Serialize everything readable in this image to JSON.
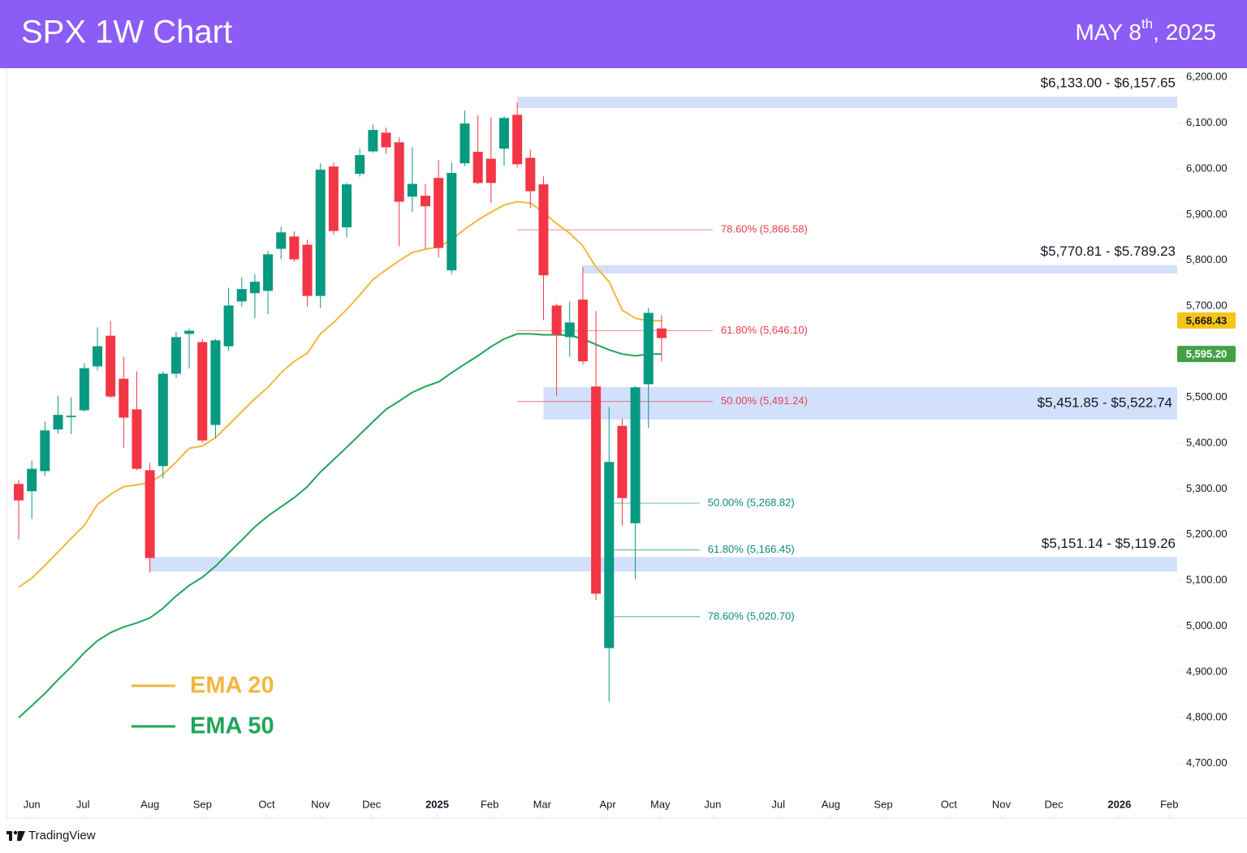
{
  "header": {
    "title": "SPX 1W Chart",
    "date": {
      "main": "MAY 8",
      "suffix": "th",
      "year": ", 2025"
    }
  },
  "footer": {
    "brand": "TradingView"
  },
  "chart_data": {
    "type": "candlestick",
    "up_color": "#089981",
    "down_color": "#f23645",
    "xlim": [
      -0.93,
      88.3
    ],
    "xticks": [
      {
        "value": 1.0,
        "label": "Jun"
      },
      {
        "value": 4.9,
        "label": "Jul"
      },
      {
        "value": 10.0,
        "label": "Aug"
      },
      {
        "value": 14.0,
        "label": "Sep"
      },
      {
        "value": 18.9,
        "label": "Oct"
      },
      {
        "value": 23.0,
        "label": "Nov"
      },
      {
        "value": 26.9,
        "label": "Dec"
      },
      {
        "value": 31.9,
        "label": "2025"
      },
      {
        "value": 35.9,
        "label": "Feb"
      },
      {
        "value": 39.9,
        "label": "Mar"
      },
      {
        "value": 44.9,
        "label": "Apr"
      },
      {
        "value": 48.9,
        "label": "May"
      },
      {
        "value": 52.9,
        "label": "Jun"
      },
      {
        "value": 57.9,
        "label": "Jul"
      },
      {
        "value": 61.9,
        "label": "Aug"
      },
      {
        "value": 65.9,
        "label": "Sep"
      },
      {
        "value": 70.9,
        "label": "Oct"
      },
      {
        "value": 74.9,
        "label": "Nov"
      },
      {
        "value": 78.9,
        "label": "Dec"
      },
      {
        "value": 83.9,
        "label": "2026"
      },
      {
        "value": 87.7,
        "label": "Feb"
      }
    ],
    "ylim": [
      4630,
      6220
    ],
    "yticks": [
      {
        "value": 4700,
        "label": "4,700.00"
      },
      {
        "value": 4800,
        "label": "4,800.00"
      },
      {
        "value": 4900,
        "label": "4,900.00"
      },
      {
        "value": 5000,
        "label": "5,000.00"
      },
      {
        "value": 5100,
        "label": "5,100.00"
      },
      {
        "value": 5200,
        "label": "5,200.00"
      },
      {
        "value": 5300,
        "label": "5,300.00"
      },
      {
        "value": 5400,
        "label": "5,400.00"
      },
      {
        "value": 5500,
        "label": "5,500.00"
      },
      {
        "value": 5600,
        "label": "5,600.00"
      },
      {
        "value": 5700,
        "label": "5,700.00"
      },
      {
        "value": 5800,
        "label": "5,800.00"
      },
      {
        "value": 5900,
        "label": "5,900.00"
      },
      {
        "value": 6000,
        "label": "6,000.00"
      },
      {
        "value": 6100,
        "label": "6,100.00"
      },
      {
        "value": 6200,
        "label": "6,200.00"
      }
    ],
    "candles": {
      "open": [
        5311,
        5295,
        5339,
        5430,
        5457,
        5472,
        5568,
        5635,
        5541,
        5474,
        5341,
        5350,
        5552,
        5639,
        5621,
        5440,
        5612,
        5710,
        5728,
        5733,
        5825,
        5852,
        5834,
        5722,
        6005,
        5872,
        5989,
        6038,
        6079,
        6058,
        5939,
        5941,
        5980,
        5778,
        6012,
        6037,
        6022,
        6044,
        6118,
        6024,
        5966,
        5701,
        5632,
        5714,
        5524,
        4952,
        5438,
        5225,
        5529,
        5651
      ],
      "high": [
        5320,
        5362,
        5447,
        5504,
        5500,
        5575,
        5653,
        5667,
        5589,
        5557,
        5357,
        5557,
        5643,
        5650,
        5628,
        5628,
        5740,
        5762,
        5770,
        5820,
        5873,
        5863,
        5845,
        6012,
        6014,
        5969,
        6044,
        6097,
        6090,
        6069,
        6047,
        5966,
        6019,
        6014,
        6127,
        6117,
        6113,
        6115,
        6145,
        6042,
        5983,
        5705,
        5710,
        5785,
        5689,
        5479,
        5454,
        5525,
        5696,
        5680
      ],
      "low": [
        5190,
        5234,
        5328,
        5421,
        5420,
        5469,
        5559,
        5499,
        5390,
        5341,
        5117,
        5323,
        5543,
        5563,
        5401,
        5412,
        5602,
        5699,
        5673,
        5682,
        5802,
        5797,
        5699,
        5696,
        5856,
        5850,
        5983,
        6035,
        6033,
        5831,
        5905,
        5824,
        5806,
        5770,
        6006,
        5966,
        5925,
        6006,
        6003,
        5914,
        5669,
        5504,
        5589,
        5572,
        5057,
        4835,
        5220,
        5103,
        5433,
        5579
      ],
      "close": [
        5275,
        5344,
        5428,
        5462,
        5460,
        5564,
        5612,
        5502,
        5456,
        5344,
        5149,
        5552,
        5632,
        5646,
        5406,
        5625,
        5701,
        5737,
        5753,
        5813,
        5861,
        5802,
        5722,
        5998,
        5864,
        5966,
        6030,
        6085,
        6047,
        5928,
        5967,
        5918,
        5827,
        5991,
        6099,
        5969,
        5969,
        6111,
        6010,
        5951,
        5767,
        5637,
        5664,
        5579,
        5071,
        5359,
        5280,
        5522,
        5685,
        5630
      ]
    },
    "series": [
      {
        "name": "EMA 20",
        "color": "#f2b740",
        "values": [
          5085,
          5105,
          5133,
          5162,
          5192,
          5220,
          5266,
          5288,
          5305,
          5309,
          5314,
          5332,
          5359,
          5389,
          5394,
          5412,
          5440,
          5469,
          5497,
          5522,
          5554,
          5579,
          5597,
          5639,
          5664,
          5692,
          5724,
          5758,
          5779,
          5799,
          5817,
          5824,
          5829,
          5845,
          5868,
          5888,
          5905,
          5921,
          5928,
          5925,
          5905,
          5880,
          5859,
          5831,
          5785,
          5753,
          5691,
          5673,
          5668,
          5668
        ]
      },
      {
        "name": "EMA 50",
        "color": "#1fa55a",
        "values": [
          4800,
          4826,
          4853,
          4883,
          4911,
          4942,
          4968,
          4986,
          4998,
          5007,
          5018,
          5039,
          5066,
          5089,
          5107,
          5131,
          5160,
          5188,
          5217,
          5241,
          5261,
          5281,
          5305,
          5337,
          5364,
          5391,
          5419,
          5447,
          5474,
          5492,
          5511,
          5524,
          5534,
          5554,
          5573,
          5591,
          5611,
          5628,
          5639,
          5639,
          5637,
          5637,
          5636,
          5628,
          5616,
          5604,
          5595,
          5591,
          5595,
          5595
        ]
      }
    ],
    "last_labels": [
      {
        "value": 5668.43,
        "label": "5,668.43",
        "color": "#f5c518",
        "text_color": "#131722"
      },
      {
        "value": 5595.2,
        "label": "5,595.20",
        "color": "#43a047",
        "text_color": "#ffffff"
      }
    ],
    "zones": [
      {
        "low": 6133.0,
        "high": 6157.65,
        "label": "$6,133.00 - $6,157.65",
        "x_start": 38
      },
      {
        "low": 5770.81,
        "high": 5789.23,
        "label": "$5,770.81 - $5.789.23",
        "x_start": 43
      },
      {
        "low": 5451.85,
        "high": 5522.74,
        "label": "$5,451.85 - $5,522.74",
        "x_start": 40
      },
      {
        "low": 5119.26,
        "high": 5151.14,
        "label": "$5,151.14 - $5,119.26",
        "x_start": 10
      }
    ],
    "zone_color": "#d3e0fb",
    "fib_levels": [
      {
        "value": 5866.58,
        "label": "78.60% (5,866.58)",
        "color": "#e5404f",
        "x_start": 38,
        "x_end": 52.9
      },
      {
        "value": 5646.1,
        "label": "61.80% (5,646.10)",
        "color": "#e5404f",
        "x_start": 38,
        "x_end": 52.9
      },
      {
        "value": 5491.24,
        "label": "50.00% (5,491.24)",
        "color": "#e5404f",
        "x_start": 38,
        "x_end": 52.9
      },
      {
        "value": 5268.82,
        "label": "50.00% (5,268.82)",
        "color": "#0b8a7a",
        "x_start": 45.4,
        "x_end": 51.9
      },
      {
        "value": 5166.45,
        "label": "61.80% (5,166.45)",
        "color": "#0b8a7a",
        "x_start": 45.4,
        "x_end": 51.9
      },
      {
        "value": 5020.7,
        "label": "78.60% (5,020.70)",
        "color": "#0b8a7a",
        "x_start": 45.4,
        "x_end": 51.9
      }
    ]
  }
}
